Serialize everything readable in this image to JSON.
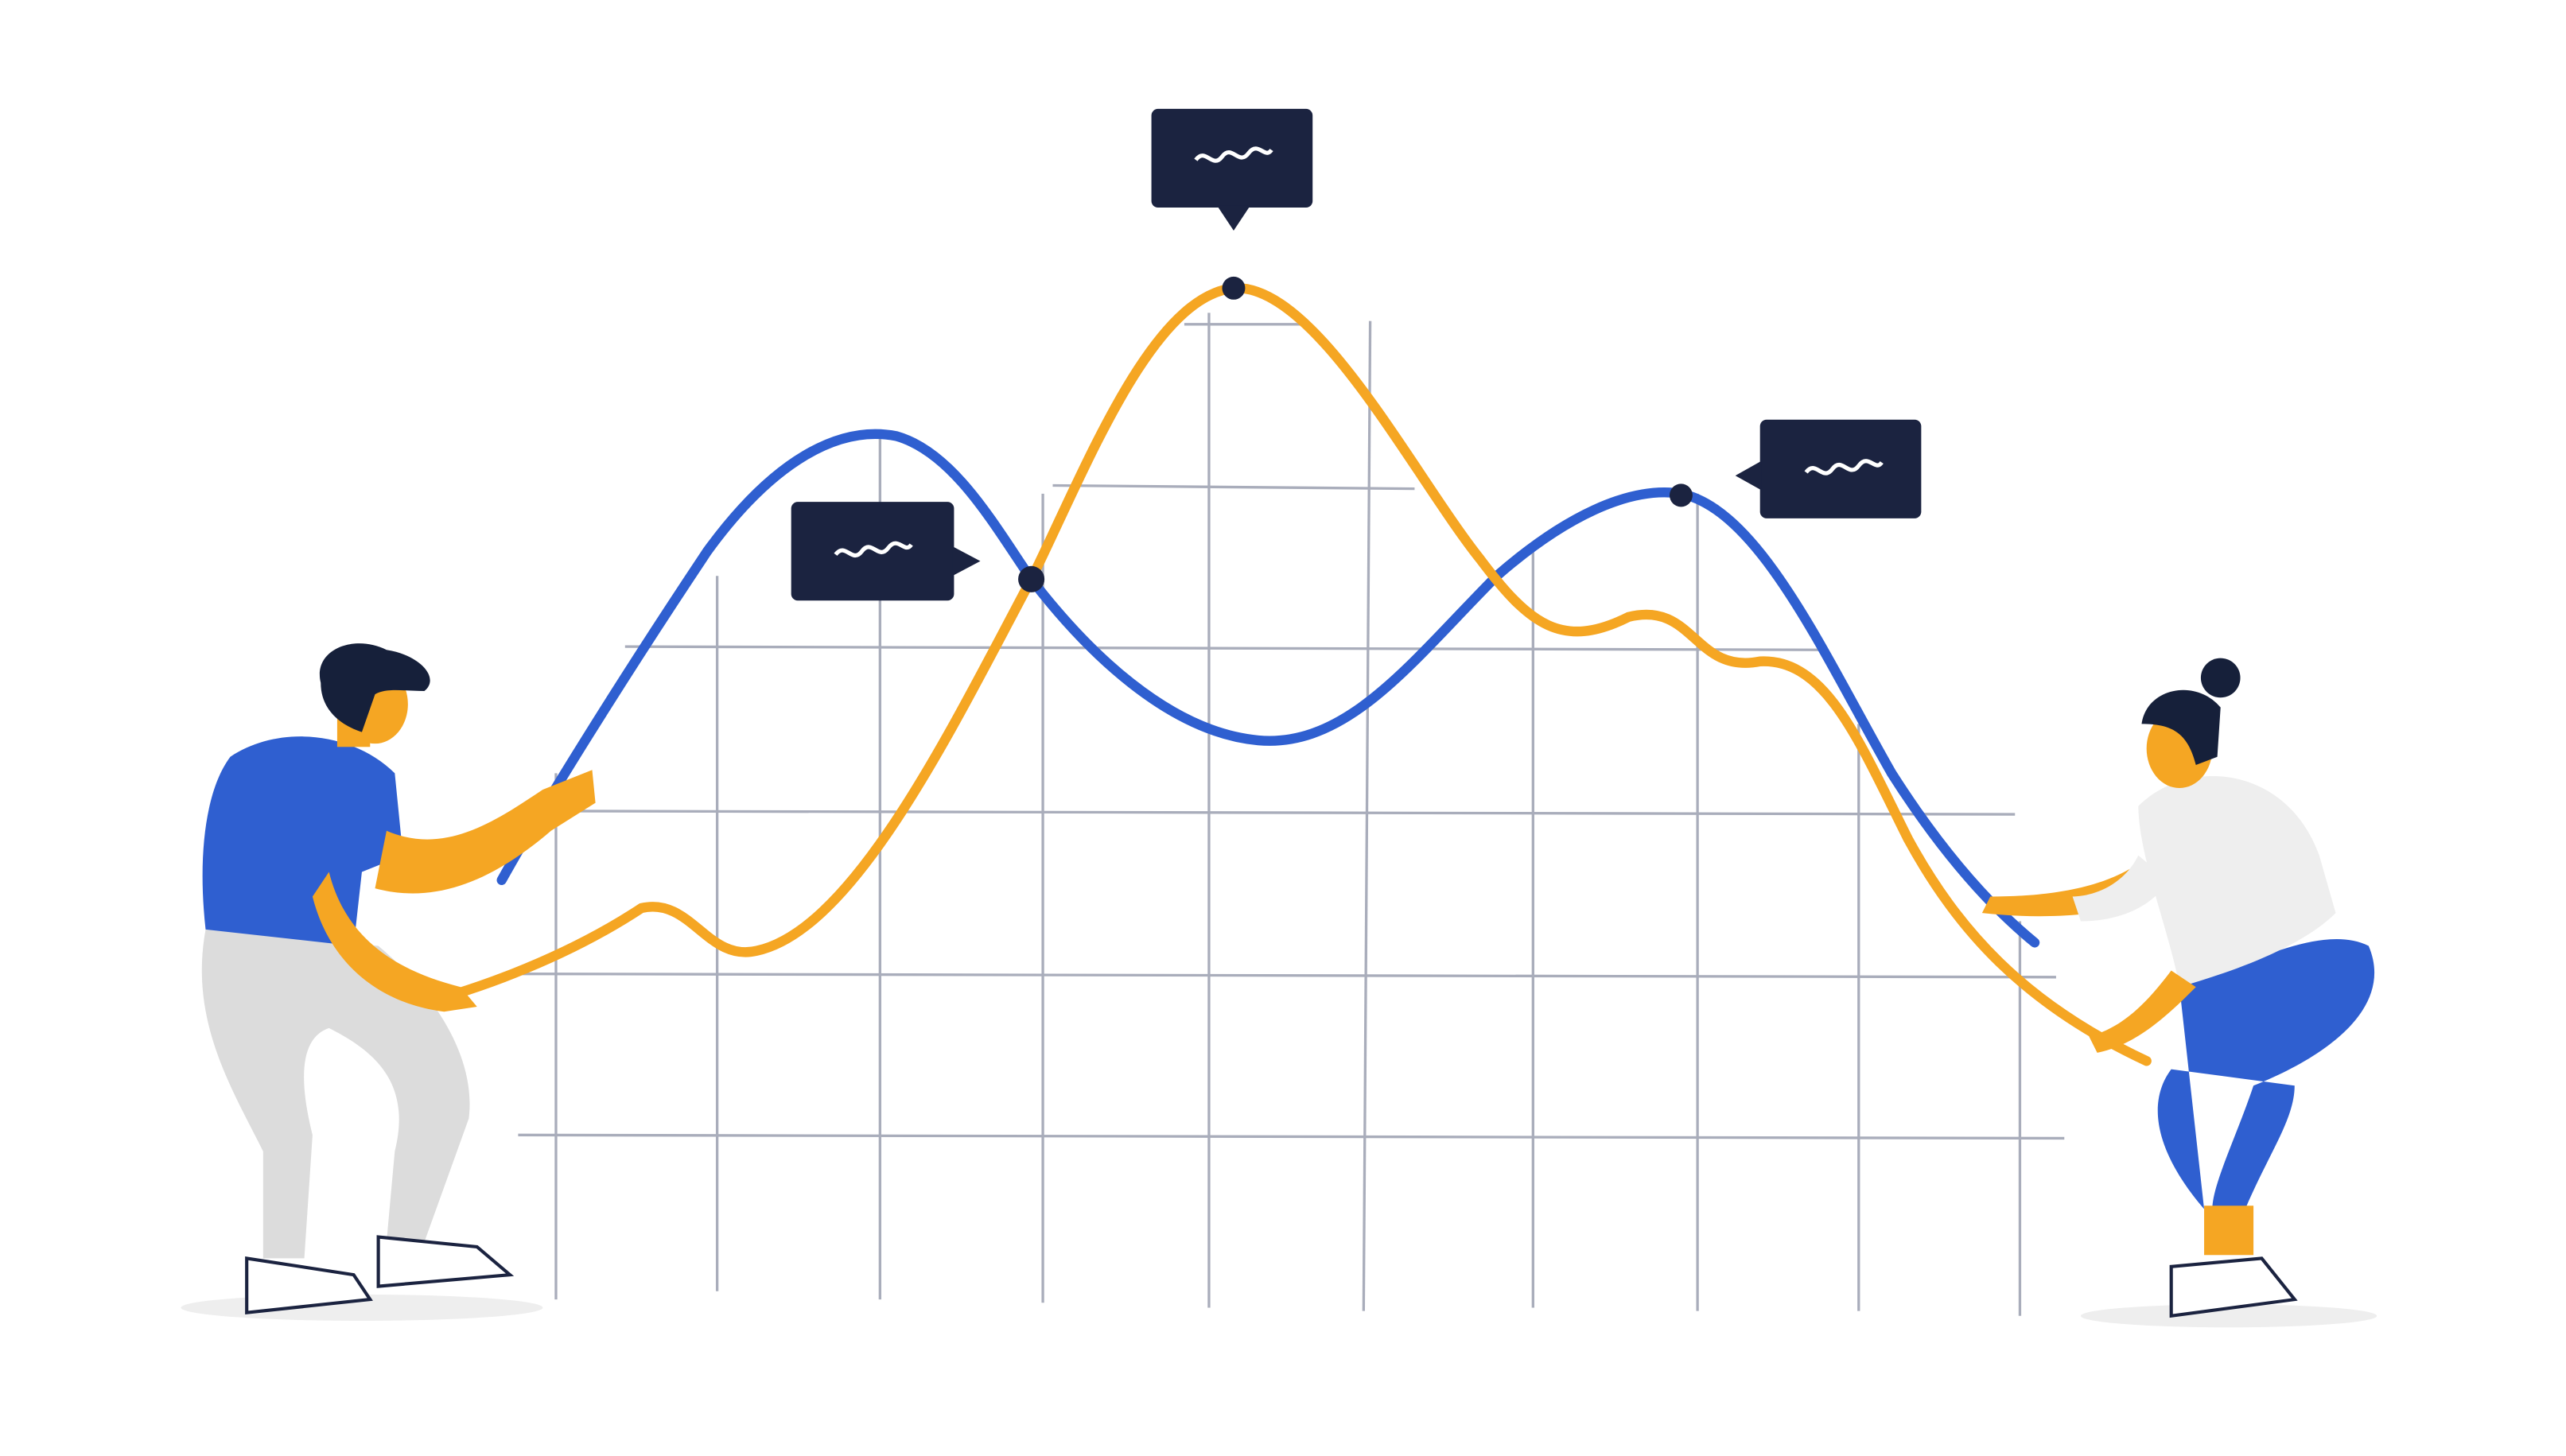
{
  "illustration": {
    "colors": {
      "background": "#ffffff",
      "blue_line": "#2f5fd0",
      "orange_line": "#f5a623",
      "grid": "#a9adbb",
      "bubble": "#1b2340",
      "skin": "#f5a623",
      "hair": "#16203a",
      "shirt_man": "#2f5fd0",
      "pants_man": "#dcdcdc",
      "shirt_woman": "#eeeeee",
      "pants_woman": "#2f5fd0"
    },
    "icons": [
      "speech-bubble-icon",
      "squiggle-icon"
    ]
  }
}
